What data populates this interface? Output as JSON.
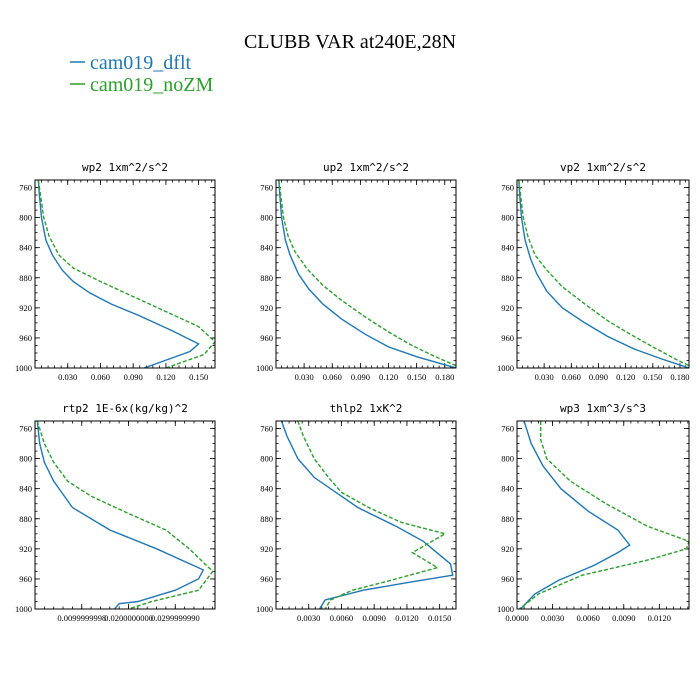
{
  "figure": {
    "title": "CLUBB VAR at240E,28N",
    "legend": [
      {
        "label": "cam019_dflt",
        "color": "#1f77b4"
      },
      {
        "label": "cam019_noZM",
        "color": "#2ca02c"
      }
    ]
  },
  "chart_data": [
    {
      "type": "line",
      "title": "wp2   1xm^2/s^2",
      "xlim": [
        0,
        0.165
      ],
      "ylim": [
        1000,
        750
      ],
      "xticks": [
        0.03,
        0.06,
        0.09,
        0.12,
        0.15
      ],
      "xtick_labels": [
        "0.030",
        "0.060",
        "0.090",
        "0.120",
        "0.150"
      ],
      "yticks": [
        760,
        800,
        840,
        880,
        920,
        960,
        1000
      ],
      "series": [
        {
          "name": "cam019_dflt",
          "color": "#1f77b4",
          "dashed": false,
          "points": [
            [
              0.003,
              750
            ],
            [
              0.004,
              770
            ],
            [
              0.006,
              800
            ],
            [
              0.01,
              830
            ],
            [
              0.016,
              850
            ],
            [
              0.025,
              870
            ],
            [
              0.035,
              885
            ],
            [
              0.05,
              900
            ],
            [
              0.07,
              915
            ],
            [
              0.095,
              930
            ],
            [
              0.125,
              950
            ],
            [
              0.15,
              968
            ],
            [
              0.142,
              978
            ],
            [
              0.1,
              1000
            ]
          ]
        },
        {
          "name": "cam019_noZM",
          "color": "#2ca02c",
          "dashed": true,
          "points": [
            [
              0.003,
              750
            ],
            [
              0.005,
              770
            ],
            [
              0.008,
              800
            ],
            [
              0.013,
              825
            ],
            [
              0.022,
              850
            ],
            [
              0.035,
              867
            ],
            [
              0.06,
              885
            ],
            [
              0.09,
              905
            ],
            [
              0.12,
              925
            ],
            [
              0.15,
              945
            ],
            [
              0.165,
              965
            ],
            [
              0.155,
              982
            ],
            [
              0.12,
              1000
            ]
          ]
        }
      ]
    },
    {
      "type": "line",
      "title": "up2   1xm^2/s^2",
      "xlim": [
        0,
        0.192
      ],
      "ylim": [
        1000,
        750
      ],
      "xticks": [
        0.03,
        0.06,
        0.09,
        0.12,
        0.15,
        0.18
      ],
      "xtick_labels": [
        "0.030",
        "0.060",
        "0.090",
        "0.120",
        "0.150",
        "0.180"
      ],
      "yticks": [
        760,
        800,
        840,
        880,
        920,
        960,
        1000
      ],
      "series": [
        {
          "name": "cam019_dflt",
          "color": "#1f77b4",
          "dashed": false,
          "points": [
            [
              0.003,
              750
            ],
            [
              0.004,
              770
            ],
            [
              0.006,
              800
            ],
            [
              0.01,
              830
            ],
            [
              0.015,
              850
            ],
            [
              0.024,
              875
            ],
            [
              0.035,
              895
            ],
            [
              0.05,
              915
            ],
            [
              0.07,
              935
            ],
            [
              0.095,
              955
            ],
            [
              0.12,
              972
            ],
            [
              0.15,
              985
            ],
            [
              0.192,
              1000
            ]
          ]
        },
        {
          "name": "cam019_noZM",
          "color": "#2ca02c",
          "dashed": true,
          "points": [
            [
              0.003,
              750
            ],
            [
              0.005,
              770
            ],
            [
              0.008,
              800
            ],
            [
              0.013,
              825
            ],
            [
              0.02,
              845
            ],
            [
              0.033,
              868
            ],
            [
              0.05,
              890
            ],
            [
              0.07,
              910
            ],
            [
              0.095,
              932
            ],
            [
              0.12,
              952
            ],
            [
              0.145,
              970
            ],
            [
              0.17,
              985
            ],
            [
              0.192,
              997
            ]
          ]
        }
      ]
    },
    {
      "type": "line",
      "title": "vp2   1xm^2/s^2",
      "xlim": [
        0,
        0.19
      ],
      "ylim": [
        1000,
        750
      ],
      "xticks": [
        0.03,
        0.06,
        0.09,
        0.12,
        0.15,
        0.18
      ],
      "xtick_labels": [
        "0.030",
        "0.060",
        "0.090",
        "0.120",
        "0.150",
        "0.180"
      ],
      "yticks": [
        760,
        800,
        840,
        880,
        920,
        960,
        1000
      ],
      "series": [
        {
          "name": "cam019_dflt",
          "color": "#1f77b4",
          "dashed": false,
          "points": [
            [
              0.002,
              750
            ],
            [
              0.003,
              770
            ],
            [
              0.005,
              800
            ],
            [
              0.009,
              830
            ],
            [
              0.015,
              855
            ],
            [
              0.022,
              875
            ],
            [
              0.033,
              898
            ],
            [
              0.05,
              920
            ],
            [
              0.075,
              940
            ],
            [
              0.1,
              958
            ],
            [
              0.13,
              975
            ],
            [
              0.16,
              988
            ],
            [
              0.19,
              1000
            ]
          ]
        },
        {
          "name": "cam019_noZM",
          "color": "#2ca02c",
          "dashed": true,
          "points": [
            [
              0.002,
              750
            ],
            [
              0.004,
              770
            ],
            [
              0.007,
              800
            ],
            [
              0.012,
              825
            ],
            [
              0.02,
              850
            ],
            [
              0.033,
              870
            ],
            [
              0.05,
              892
            ],
            [
              0.075,
              915
            ],
            [
              0.1,
              937
            ],
            [
              0.125,
              955
            ],
            [
              0.15,
              972
            ],
            [
              0.175,
              988
            ],
            [
              0.19,
              997
            ]
          ]
        }
      ]
    },
    {
      "type": "line",
      "title": "rtp2   1E-6x(kg/kg)^2",
      "xlim": [
        0,
        0.0385
      ],
      "ylim": [
        1000,
        750
      ],
      "xticks": [
        0.0099999998,
        0.02,
        0.029999999
      ],
      "xtick_labels": [
        "0.0099999998",
        "0.0200000000",
        "0.0299999990"
      ],
      "yticks": [
        760,
        800,
        840,
        880,
        920,
        960,
        1000
      ],
      "series": [
        {
          "name": "cam019_dflt",
          "color": "#1f77b4",
          "dashed": false,
          "points": [
            [
              0.0005,
              750
            ],
            [
              0.001,
              780
            ],
            [
              0.002,
              805
            ],
            [
              0.004,
              830
            ],
            [
              0.008,
              865
            ],
            [
              0.016,
              895
            ],
            [
              0.026,
              920
            ],
            [
              0.036,
              948
            ],
            [
              0.035,
              960
            ],
            [
              0.03,
              975
            ],
            [
              0.022,
              990
            ],
            [
              0.018,
              993
            ],
            [
              0.017,
              1000
            ]
          ]
        },
        {
          "name": "cam019_noZM",
          "color": "#2ca02c",
          "dashed": true,
          "points": [
            [
              0.0005,
              750
            ],
            [
              0.002,
              780
            ],
            [
              0.004,
              805
            ],
            [
              0.007,
              830
            ],
            [
              0.012,
              850
            ],
            [
              0.02,
              873
            ],
            [
              0.028,
              895
            ],
            [
              0.033,
              920
            ],
            [
              0.038,
              950
            ],
            [
              0.035,
              975
            ],
            [
              0.025,
              990
            ],
            [
              0.02,
              1000
            ]
          ]
        }
      ]
    },
    {
      "type": "line",
      "title": "thlp2   1xK^2",
      "xlim": [
        0,
        0.0165
      ],
      "ylim": [
        1000,
        750
      ],
      "xticks": [
        0.003,
        0.006,
        0.009,
        0.012,
        0.015
      ],
      "xtick_labels": [
        "0.0030",
        "0.0060",
        "0.0090",
        "0.0120",
        "0.0150"
      ],
      "yticks": [
        760,
        800,
        840,
        880,
        920,
        960,
        1000
      ],
      "series": [
        {
          "name": "cam019_dflt",
          "color": "#1f77b4",
          "dashed": false,
          "points": [
            [
              0.0005,
              750
            ],
            [
              0.001,
              770
            ],
            [
              0.002,
              800
            ],
            [
              0.0035,
              825
            ],
            [
              0.0055,
              845
            ],
            [
              0.0075,
              865
            ],
            [
              0.011,
              890
            ],
            [
              0.0135,
              910
            ],
            [
              0.016,
              940
            ],
            [
              0.0162,
              955
            ],
            [
              0.012,
              965
            ],
            [
              0.008,
              975
            ],
            [
              0.0045,
              988
            ],
            [
              0.004,
              1000
            ]
          ]
        },
        {
          "name": "cam019_noZM",
          "color": "#2ca02c",
          "dashed": true,
          "points": [
            [
              0.002,
              750
            ],
            [
              0.0025,
              770
            ],
            [
              0.0035,
              800
            ],
            [
              0.0048,
              825
            ],
            [
              0.006,
              845
            ],
            [
              0.0085,
              865
            ],
            [
              0.0115,
              885
            ],
            [
              0.0155,
              900
            ],
            [
              0.0125,
              925
            ],
            [
              0.0148,
              945
            ],
            [
              0.0105,
              962
            ],
            [
              0.007,
              975
            ],
            [
              0.005,
              988
            ],
            [
              0.0045,
              1000
            ]
          ]
        }
      ]
    },
    {
      "type": "line",
      "title": "wp3   1xm^3/s^3",
      "xlim": [
        0,
        0.0145
      ],
      "ylim": [
        1000,
        750
      ],
      "xticks": [
        0.0,
        0.003,
        0.006,
        0.009,
        0.012
      ],
      "xtick_labels": [
        "0.0000",
        "0.0030",
        "0.0060",
        "0.0090",
        "0.0120"
      ],
      "yticks": [
        760,
        800,
        840,
        880,
        920,
        960,
        1000
      ],
      "series": [
        {
          "name": "cam019_dflt",
          "color": "#1f77b4",
          "dashed": false,
          "points": [
            [
              0.0006,
              750
            ],
            [
              0.0012,
              780
            ],
            [
              0.0022,
              810
            ],
            [
              0.0037,
              840
            ],
            [
              0.006,
              870
            ],
            [
              0.0085,
              895
            ],
            [
              0.0095,
              915
            ],
            [
              0.0085,
              925
            ],
            [
              0.0065,
              942
            ],
            [
              0.0035,
              962
            ],
            [
              0.0015,
              980
            ],
            [
              0.0003,
              1000
            ]
          ]
        },
        {
          "name": "cam019_noZM",
          "color": "#2ca02c",
          "dashed": true,
          "points": [
            [
              0.002,
              750
            ],
            [
              0.002,
              775
            ],
            [
              0.0025,
              800
            ],
            [
              0.0045,
              830
            ],
            [
              0.0075,
              860
            ],
            [
              0.011,
              890
            ],
            [
              0.0145,
              910
            ],
            [
              0.0143,
              920
            ],
            [
              0.011,
              935
            ],
            [
              0.0055,
              955
            ],
            [
              0.0018,
              980
            ],
            [
              0.0002,
              1000
            ]
          ]
        }
      ]
    }
  ]
}
